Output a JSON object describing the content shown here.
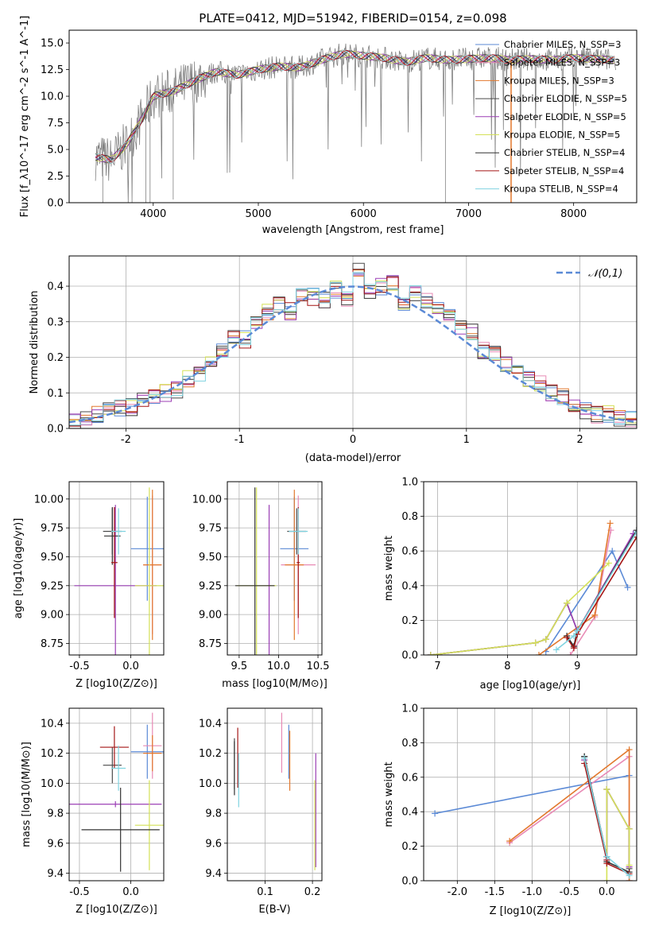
{
  "chart_data": [
    {
      "id": "spectrum",
      "type": "line",
      "title": "PLATE=0412, MJD=51942, FIBERID=0154, z=0.098",
      "xlabel": "wavelength [Angstrom, rest frame]",
      "ylabel": "Flux [f_λ10^-17 erg cm^-2 s^-1 A^-1]",
      "xlim": [
        3200,
        8600
      ],
      "ylim": [
        0,
        16.2
      ],
      "xticks": [
        4000,
        5000,
        6000,
        7000,
        8000
      ],
      "yticks": [
        0.0,
        2.5,
        5.0,
        7.5,
        10.0,
        12.5,
        15.0
      ],
      "data_envelope": {
        "x": [
          3450,
          3600,
          3750,
          3900,
          4000,
          4200,
          4400,
          4600,
          4800,
          5000,
          5200,
          5400,
          5600,
          5800,
          6000,
          6200,
          6400,
          6600,
          6800,
          7000,
          7200,
          7400,
          7600,
          7800,
          8000,
          8200,
          8400
        ],
        "y": [
          4.3,
          4.0,
          5.5,
          8.0,
          10.0,
          10.5,
          11.5,
          12.3,
          12.0,
          12.5,
          12.8,
          12.7,
          13.4,
          14.0,
          13.8,
          13.6,
          13.2,
          13.6,
          13.4,
          13.5,
          13.6,
          13.4,
          13.5,
          13.4,
          13.6,
          13.5,
          13.4
        ]
      },
      "legend": [
        {
          "label": "Chabrier MILES, N_SSP=3",
          "color": "#5b8ad6"
        },
        {
          "label": "Salpeter MILES, N_SSP=3",
          "color": "#e88ab5"
        },
        {
          "label": "Kroupa MILES, N_SSP=3",
          "color": "#e2782d"
        },
        {
          "label": "Chabrier ELODIE, N_SSP=5",
          "color": "#4a4a4a"
        },
        {
          "label": "Salpeter ELODIE, N_SSP=5",
          "color": "#9b3fb5"
        },
        {
          "label": "Kroupa ELODIE, N_SSP=5",
          "color": "#d4e157"
        },
        {
          "label": "Chabrier STELIB, N_SSP=4",
          "color": "#333333"
        },
        {
          "label": "Salpeter STELIB, N_SSP=4",
          "color": "#a31515"
        },
        {
          "label": "Kroupa STELIB, N_SSP=4",
          "color": "#7fd3e0"
        }
      ],
      "legend_position": "right"
    },
    {
      "id": "residuals",
      "type": "line",
      "title": "",
      "xlabel": "(data-model)/error",
      "ylabel": "Normed distribution",
      "xlim": [
        -2.5,
        2.5
      ],
      "ylim": [
        0,
        0.485
      ],
      "xticks": [
        -2,
        -1,
        0,
        1,
        2
      ],
      "yticks": [
        0.0,
        0.1,
        0.2,
        0.3,
        0.4
      ],
      "series": [
        {
          "name": "𝒩(0,1)",
          "style": "dashed",
          "color": "#5b8ad6",
          "function": "normal",
          "mu": 0,
          "sigma": 1
        }
      ],
      "histogram_bins": [
        -2.5,
        -2.4,
        -2.3,
        -2.2,
        -2.1,
        -2.0,
        -1.9,
        -1.8,
        -1.7,
        -1.6,
        -1.5,
        -1.4,
        -1.3,
        -1.2,
        -1.1,
        -1.0,
        -0.9,
        -0.8,
        -0.7,
        -0.6,
        -0.5,
        -0.4,
        -0.3,
        -0.2,
        -0.1,
        0.0,
        0.1,
        0.2,
        0.3,
        0.4,
        0.5,
        0.6,
        0.7,
        0.8,
        0.9,
        1.0,
        1.1,
        1.2,
        1.3,
        1.4,
        1.5,
        1.6,
        1.7,
        1.8,
        1.9,
        2.0,
        2.1,
        2.2,
        2.3,
        2.4
      ],
      "histogram_values": [
        0.02,
        0.03,
        0.04,
        0.05,
        0.06,
        0.06,
        0.08,
        0.09,
        0.1,
        0.11,
        0.14,
        0.15,
        0.18,
        0.22,
        0.26,
        0.25,
        0.3,
        0.33,
        0.35,
        0.33,
        0.38,
        0.37,
        0.36,
        0.39,
        0.36,
        0.44,
        0.38,
        0.4,
        0.41,
        0.35,
        0.38,
        0.36,
        0.33,
        0.31,
        0.28,
        0.27,
        0.22,
        0.21,
        0.18,
        0.16,
        0.14,
        0.13,
        0.1,
        0.09,
        0.07,
        0.05,
        0.04,
        0.04,
        0.03,
        0.03
      ]
    },
    {
      "id": "age-vs-Z",
      "type": "scatter",
      "xlabel": "Z [log10(Z/Z⊙)]",
      "ylabel": "age [log10(age/yr)]",
      "xlim": [
        -0.6,
        0.32
      ],
      "ylim": [
        8.65,
        10.15
      ],
      "xticks": [
        -0.5,
        0.0
      ],
      "yticks": [
        8.75,
        9.0,
        9.25,
        9.5,
        9.75,
        10.0
      ],
      "points": [
        {
          "x": 0.16,
          "y": 9.57,
          "xerr": 0.16,
          "yerr": 0.45,
          "color": "#5b8ad6"
        },
        {
          "x": 0.21,
          "y": 9.43,
          "xerr": 0.09,
          "yerr": 0.6,
          "color": "#e88ab5"
        },
        {
          "x": 0.21,
          "y": 9.43,
          "xerr": 0.09,
          "yerr": 0.65,
          "color": "#e2782d"
        },
        {
          "x": -0.18,
          "y": 9.72,
          "xerr": 0.09,
          "yerr": 0.2,
          "color": "#4a4a4a"
        },
        {
          "x": -0.15,
          "y": 9.25,
          "xerr": 0.4,
          "yerr": 0.7,
          "color": "#9b3fb5"
        },
        {
          "x": 0.18,
          "y": 9.25,
          "xerr": 0.14,
          "yerr": 0.85,
          "color": "#d4e157"
        },
        {
          "x": -0.18,
          "y": 9.68,
          "xerr": 0.08,
          "yerr": 0.25,
          "color": "#333333"
        },
        {
          "x": -0.16,
          "y": 9.45,
          "xerr": 0.03,
          "yerr": 0.48,
          "color": "#a31515"
        },
        {
          "x": -0.12,
          "y": 9.72,
          "xerr": 0.07,
          "yerr": 0.2,
          "color": "#7fd3e0"
        }
      ]
    },
    {
      "id": "age-vs-mass",
      "type": "scatter",
      "xlabel": "mass [log10(M/M⊙)]",
      "ylabel": "",
      "xlim": [
        9.35,
        10.55
      ],
      "ylim": [
        8.65,
        10.15
      ],
      "xticks": [
        9.5,
        10.0,
        10.5
      ],
      "yticks": [
        8.75,
        9.0,
        9.25,
        9.5,
        9.75,
        10.0
      ],
      "points": [
        {
          "x": 10.2,
          "y": 9.57,
          "xerr": 0.18,
          "yerr": 0.45,
          "color": "#5b8ad6"
        },
        {
          "x": 10.25,
          "y": 9.43,
          "xerr": 0.22,
          "yerr": 0.6,
          "color": "#e88ab5"
        },
        {
          "x": 10.2,
          "y": 9.43,
          "xerr": 0.12,
          "yerr": 0.65,
          "color": "#e2782d"
        },
        {
          "x": 10.23,
          "y": 9.72,
          "xerr": 0.12,
          "yerr": 0.2,
          "color": "#4a4a4a"
        },
        {
          "x": 9.88,
          "y": 9.25,
          "xerr": 0.02,
          "yerr": 0.7,
          "color": "#9b3fb5"
        },
        {
          "x": 9.72,
          "y": 9.25,
          "xerr": 0.25,
          "yerr": 0.85,
          "color": "#d4e157"
        },
        {
          "x": 9.7,
          "y": 9.25,
          "xerr": 0.25,
          "yerr": 0.85,
          "color": "#333333"
        },
        {
          "x": 10.25,
          "y": 9.45,
          "xerr": 0.02,
          "yerr": 0.48,
          "color": "#a31515"
        },
        {
          "x": 10.25,
          "y": 9.72,
          "xerr": 0.12,
          "yerr": 0.2,
          "color": "#7fd3e0"
        }
      ]
    },
    {
      "id": "massweight-vs-age",
      "type": "line",
      "xlabel": "age [log10(age/yr)]",
      "ylabel": "mass weight",
      "xlim": [
        6.8,
        9.85
      ],
      "ylim": [
        0,
        1.0
      ],
      "xticks": [
        7,
        8,
        9
      ],
      "yticks": [
        0.0,
        0.2,
        0.4,
        0.6,
        0.8,
        1.0
      ],
      "series": [
        {
          "name": "Chabrier MILES",
          "color": "#5b8ad6",
          "x": [
            8.55,
            9.5,
            9.72
          ],
          "y": [
            0.02,
            0.6,
            0.39
          ]
        },
        {
          "name": "Salpeter MILES",
          "color": "#e88ab5",
          "x": [
            8.9,
            9.25,
            9.48
          ],
          "y": [
            0.0,
            0.22,
            0.72
          ]
        },
        {
          "name": "Kroupa MILES",
          "color": "#e2782d",
          "x": [
            8.45,
            9.25,
            9.47
          ],
          "y": [
            0.0,
            0.23,
            0.76
          ]
        },
        {
          "name": "Chabrier ELODIE",
          "color": "#4a4a4a",
          "x": [
            6.9,
            8.4,
            8.55,
            8.85,
            9.0,
            9.85
          ],
          "y": [
            0.0,
            0.07,
            0.09,
            0.3,
            0.14,
            0.72
          ]
        },
        {
          "name": "Salpeter ELODIE",
          "color": "#9b3fb5",
          "x": [
            6.9,
            8.4,
            8.55,
            8.85,
            9.0,
            9.8
          ],
          "y": [
            0.0,
            0.07,
            0.09,
            0.3,
            0.14,
            0.7
          ]
        },
        {
          "name": "Kroupa ELODIE",
          "color": "#d4e157",
          "x": [
            6.9,
            8.4,
            8.55,
            8.85,
            9.45
          ],
          "y": [
            0.0,
            0.07,
            0.09,
            0.3,
            0.53
          ]
        },
        {
          "name": "Chabrier STELIB",
          "color": "#333333",
          "x": [
            8.85,
            8.95,
            9.0,
            9.85
          ],
          "y": [
            0.11,
            0.05,
            0.14,
            0.72
          ]
        },
        {
          "name": "Salpeter STELIB",
          "color": "#a31515",
          "x": [
            8.85,
            8.95,
            9.0,
            9.85
          ],
          "y": [
            0.1,
            0.04,
            0.12,
            0.68
          ]
        },
        {
          "name": "Kroupa STELIB",
          "color": "#7fd3e0",
          "x": [
            8.7,
            8.95,
            9.0,
            9.85
          ],
          "y": [
            0.03,
            0.11,
            0.14,
            0.71
          ]
        }
      ]
    },
    {
      "id": "mass-vs-Z",
      "type": "scatter",
      "xlabel": "Z [log10(Z/Z⊙)]",
      "ylabel": "mass [log10(M/M⊙)]",
      "xlim": [
        -0.6,
        0.32
      ],
      "ylim": [
        9.35,
        10.5
      ],
      "xticks": [
        -0.5,
        0.0
      ],
      "yticks": [
        9.4,
        9.6,
        9.8,
        10.0,
        10.2,
        10.4
      ],
      "points": [
        {
          "x": 0.16,
          "y": 10.21,
          "xerr": 0.16,
          "yerr": 0.18,
          "color": "#5b8ad6"
        },
        {
          "x": 0.21,
          "y": 10.25,
          "xerr": 0.09,
          "yerr": 0.22,
          "color": "#e88ab5"
        },
        {
          "x": 0.21,
          "y": 10.2,
          "xerr": 0.09,
          "yerr": 0.12,
          "color": "#e2782d"
        },
        {
          "x": -0.18,
          "y": 10.12,
          "xerr": 0.09,
          "yerr": 0.12,
          "color": "#4a4a4a"
        },
        {
          "x": -0.15,
          "y": 9.86,
          "xerr": 0.45,
          "yerr": 0.02,
          "color": "#9b3fb5"
        },
        {
          "x": 0.18,
          "y": 9.72,
          "xerr": 0.14,
          "yerr": 0.3,
          "color": "#d4e157"
        },
        {
          "x": -0.1,
          "y": 9.69,
          "xerr": 0.38,
          "yerr": 0.28,
          "color": "#333333"
        },
        {
          "x": -0.16,
          "y": 10.24,
          "xerr": 0.14,
          "yerr": 0.14,
          "color": "#a31515"
        },
        {
          "x": -0.12,
          "y": 10.1,
          "xerr": 0.07,
          "yerr": 0.15,
          "color": "#7fd3e0"
        }
      ]
    },
    {
      "id": "mass-vs-EBV",
      "type": "scatter",
      "xlabel": "E(B-V)",
      "ylabel": "",
      "xlim": [
        0.02,
        0.22
      ],
      "ylim": [
        9.35,
        10.5
      ],
      "xticks": [
        0.1,
        0.2
      ],
      "yticks": [
        9.4,
        9.6,
        9.8,
        10.0,
        10.2,
        10.4
      ],
      "points": [
        {
          "x": 0.15,
          "y": 10.21,
          "yerr": 0.18,
          "color": "#5b8ad6"
        },
        {
          "x": 0.135,
          "y": 10.27,
          "yerr": 0.2,
          "color": "#e88ab5"
        },
        {
          "x": 0.152,
          "y": 10.15,
          "yerr": 0.2,
          "color": "#e2782d"
        },
        {
          "x": 0.035,
          "y": 10.13,
          "yerr": 0.17,
          "color": "#4a4a4a"
        },
        {
          "x": 0.207,
          "y": 9.82,
          "yerr": 0.38,
          "color": "#9b3fb5"
        },
        {
          "x": 0.205,
          "y": 9.72,
          "yerr": 0.3,
          "color": "#d4e157"
        },
        {
          "x": 0.035,
          "y": 10.1,
          "yerr": 0.18,
          "color": "#333333"
        },
        {
          "x": 0.042,
          "y": 10.17,
          "yerr": 0.2,
          "color": "#a31515"
        },
        {
          "x": 0.044,
          "y": 10.02,
          "yerr": 0.18,
          "color": "#7fd3e0"
        }
      ]
    },
    {
      "id": "massweight-vs-Z",
      "type": "line",
      "xlabel": "Z [log10(Z/Z⊙)]",
      "ylabel": "mass weight",
      "xlim": [
        -2.45,
        0.4
      ],
      "ylim": [
        0,
        1.0
      ],
      "xticks": [
        -2.0,
        -1.5,
        -1.0,
        -0.5,
        0.0
      ],
      "yticks": [
        0.0,
        0.2,
        0.4,
        0.6,
        0.8,
        1.0
      ],
      "series": [
        {
          "name": "Chabrier MILES",
          "color": "#5b8ad6",
          "x": [
            -2.3,
            0.3
          ],
          "y": [
            0.39,
            0.61
          ]
        },
        {
          "name": "Salpeter MILES",
          "color": "#e88ab5",
          "x": [
            -1.3,
            0.3,
            0.3
          ],
          "y": [
            0.22,
            0.72,
            0.0
          ]
        },
        {
          "name": "Kroupa MILES",
          "color": "#e2782d",
          "x": [
            -1.3,
            0.3,
            0.3
          ],
          "y": [
            0.23,
            0.76,
            0.0
          ]
        },
        {
          "name": "Chabrier ELODIE",
          "color": "#4a4a4a",
          "x": [
            -0.3,
            0.0,
            0.0,
            0.3,
            0.3
          ],
          "y": [
            0.72,
            0.14,
            0.53,
            0.3,
            0.07
          ]
        },
        {
          "name": "Salpeter ELODIE",
          "color": "#9b3fb5",
          "x": [
            -0.3,
            0.0,
            0.0,
            0.3,
            0.3
          ],
          "y": [
            0.7,
            0.12,
            0.53,
            0.3,
            0.08
          ]
        },
        {
          "name": "Kroupa ELODIE",
          "color": "#d4e157",
          "x": [
            0.0,
            0.0,
            0.3,
            0.3
          ],
          "y": [
            0.0,
            0.53,
            0.3,
            0.09
          ]
        },
        {
          "name": "Chabrier STELIB",
          "color": "#333333",
          "x": [
            -0.3,
            0.0,
            0.0,
            0.3
          ],
          "y": [
            0.72,
            0.14,
            0.11,
            0.05
          ]
        },
        {
          "name": "Salpeter STELIB",
          "color": "#a31515",
          "x": [
            -0.3,
            0.0,
            0.0,
            0.3
          ],
          "y": [
            0.68,
            0.12,
            0.1,
            0.04
          ]
        },
        {
          "name": "Kroupa STELIB",
          "color": "#7fd3e0",
          "x": [
            -0.3,
            0.0,
            0.3
          ],
          "y": [
            0.71,
            0.14,
            0.03
          ]
        }
      ]
    }
  ]
}
